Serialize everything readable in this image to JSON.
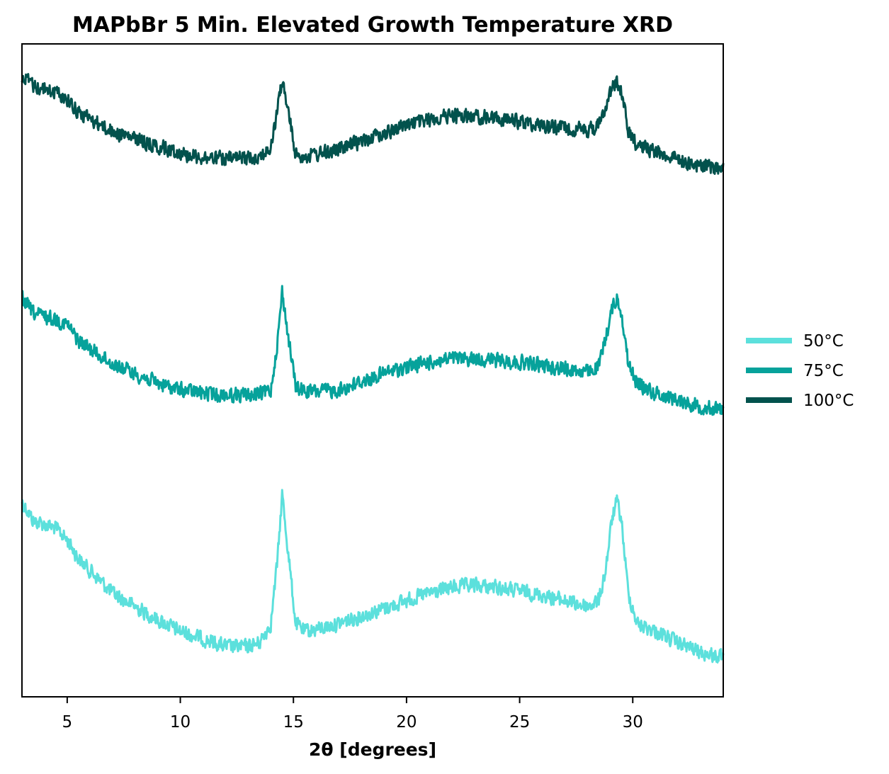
{
  "chart_data": {
    "type": "line",
    "title": "MAPbBr 5 Min. Elevated Growth Temperature XRD",
    "xlabel": "2θ [degrees]",
    "ylabel": "",
    "xlim": [
      3,
      34
    ],
    "x_ticks": [
      5,
      10,
      15,
      20,
      25,
      30
    ],
    "y_ticks_visible": false,
    "grid": false,
    "legend_position": "right",
    "x_anchor": [
      3,
      3.5,
      4.5,
      5,
      5.5,
      7,
      9,
      10,
      11,
      12,
      13,
      13.5,
      14,
      14.3,
      14.5,
      14.8,
      15.1,
      15.5,
      16,
      17,
      18,
      19,
      20,
      21,
      22,
      23,
      24,
      25,
      26,
      27,
      28,
      28.5,
      28.8,
      29.1,
      29.3,
      29.5,
      29.8,
      30.2,
      31,
      32,
      33,
      34
    ],
    "series": [
      {
        "name": "50°C",
        "color": "#5ce0dc",
        "values": [
          0.98,
          0.93,
          0.91,
          0.88,
          0.83,
          0.74,
          0.67,
          0.64,
          0.62,
          0.6,
          0.6,
          0.61,
          0.66,
          0.83,
          1.0,
          0.83,
          0.66,
          0.64,
          0.645,
          0.66,
          0.68,
          0.7,
          0.72,
          0.74,
          0.755,
          0.76,
          0.755,
          0.745,
          0.735,
          0.72,
          0.705,
          0.72,
          0.8,
          0.94,
          0.98,
          0.93,
          0.74,
          0.66,
          0.64,
          0.61,
          0.585,
          0.57
        ]
      },
      {
        "name": "75°C",
        "color": "#06a29b",
        "values": [
          0.98,
          0.935,
          0.915,
          0.9,
          0.85,
          0.78,
          0.72,
          0.7,
          0.69,
          0.685,
          0.685,
          0.685,
          0.7,
          0.85,
          1.0,
          0.85,
          0.71,
          0.695,
          0.695,
          0.7,
          0.725,
          0.75,
          0.77,
          0.785,
          0.795,
          0.795,
          0.79,
          0.785,
          0.775,
          0.765,
          0.755,
          0.77,
          0.86,
          0.95,
          0.98,
          0.94,
          0.78,
          0.72,
          0.69,
          0.67,
          0.65,
          0.64
        ]
      },
      {
        "name": "100°C",
        "color": "#02524d",
        "values": [
          1.0,
          0.97,
          0.95,
          0.93,
          0.89,
          0.83,
          0.785,
          0.765,
          0.75,
          0.745,
          0.75,
          0.755,
          0.775,
          0.9,
          0.985,
          0.88,
          0.76,
          0.755,
          0.76,
          0.775,
          0.8,
          0.825,
          0.85,
          0.865,
          0.88,
          0.875,
          0.87,
          0.86,
          0.85,
          0.84,
          0.835,
          0.845,
          0.91,
          0.965,
          0.985,
          0.95,
          0.83,
          0.79,
          0.77,
          0.745,
          0.725,
          0.715
        ]
      }
    ]
  }
}
